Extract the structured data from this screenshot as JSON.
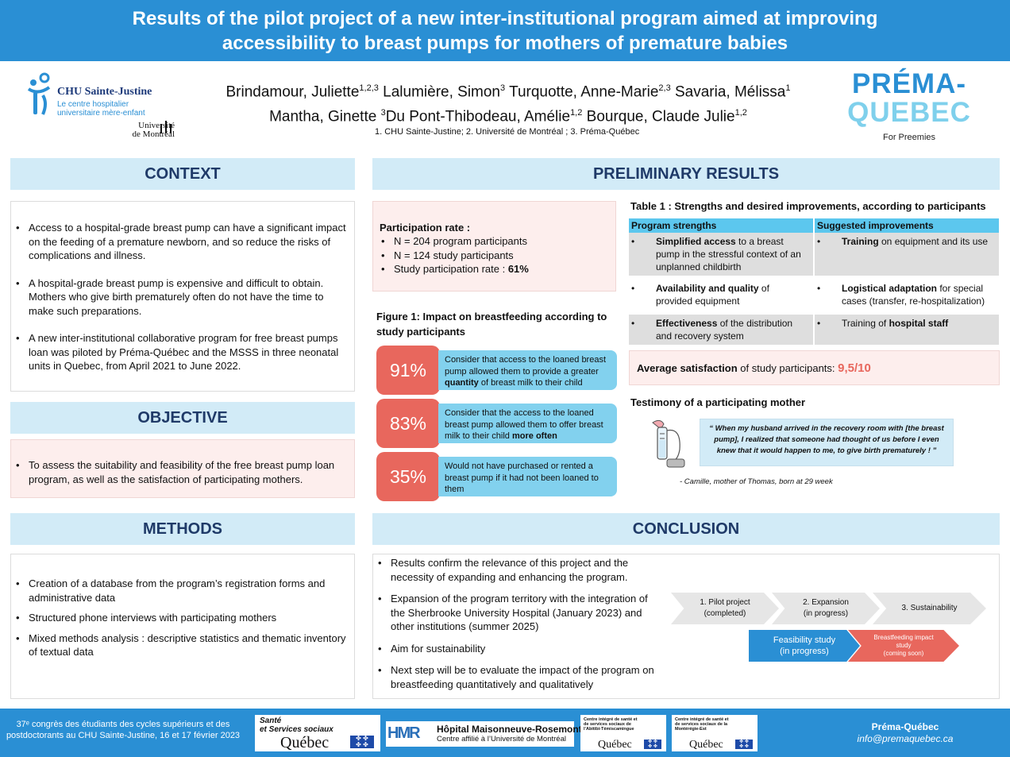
{
  "title_line1": "Results of the pilot project of a new inter-institutional program aimed at improving",
  "title_line2": "accessibility to breast pumps for mothers of premature babies",
  "logos": {
    "chu_name": "CHU Sainte-Justine",
    "chu_sub1": "Le centre hospitalier",
    "chu_sub2": "universitaire mère-enfant",
    "udem1": "Université",
    "udem2": "de Montréal",
    "prema1": "PRÉMA-",
    "prema2": "QUEBEC",
    "prema_tag": "For Preemies"
  },
  "authors": [
    {
      "name": "Brindamour, Juliette",
      "sup": "1,2,3"
    },
    {
      "name": "Lalumière, Simon",
      "sup": "3"
    },
    {
      "name": "Turquotte, Anne-Marie",
      "sup": "2,3"
    },
    {
      "name": "Savaria, Mélissa",
      "sup": "1"
    },
    {
      "name": "Mantha, Ginette ",
      "sup": "3"
    },
    {
      "name": "Du Pont-Thibodeau, Amélie",
      "sup": "1,2"
    },
    {
      "name": "Bourque, Claude Julie",
      "sup": "1,2"
    }
  ],
  "affiliations": "1. CHU Sainte-Justine; 2. Université de Montréal ; 3. Préma-Québec",
  "context": {
    "heading": "CONTEXT",
    "items": [
      "Access to a hospital-grade breast pump can have a significant impact on the feeding of a premature newborn, and so reduce the risks of complications and illness.",
      "A hospital-grade breast pump is expensive and difficult to obtain. Mothers who give birth prematurely often do not have the time to make such preparations.",
      "A new inter-institutional collaborative program for free breast pumps loan was piloted by Préma-Québec and the MSSS in three neonatal units in Quebec, from April 2021 to June 2022."
    ]
  },
  "objective": {
    "heading": "OBJECTIVE",
    "items": [
      "To assess the suitability and feasibility of the free breast pump loan program, as well as the satisfaction of participating mothers."
    ]
  },
  "methods": {
    "heading": "METHODS",
    "items": [
      "Creation of a database from the program’s registration forms and administrative data",
      "Structured phone interviews with participating mothers",
      "Mixed methods analysis : descriptive statistics and thematic inventory of textual data"
    ]
  },
  "results": {
    "heading": "PRELIMINARY RESULTS",
    "participation_title": "Participation rate :",
    "participation": [
      "N = 204 program participants",
      "N = 124 study participants"
    ],
    "participation_rate_label": "Study participation rate : ",
    "participation_rate_value": "61%",
    "figure_title": "Figure 1: Impact on breastfeeding according to study participants",
    "stats": [
      {
        "value": "91%",
        "pre": "Consider that access to the loaned breast pump allowed them to provide a greater ",
        "bold": "quantity",
        "post": " of breast milk to their child"
      },
      {
        "value": "83%",
        "pre": "Consider that the access to the loaned breast pump allowed them to offer breast milk to their child ",
        "bold": "more often",
        "post": ""
      },
      {
        "value": "35%",
        "pre": "Would not have purchased or rented a breast pump if it had not been loaned to them",
        "bold": "",
        "post": ""
      }
    ],
    "table_title": "Table 1 : Strengths and desired improvements, according to participants",
    "table_headers": [
      "Program strengths",
      "Suggested improvements"
    ],
    "table_rows": [
      [
        {
          "b": "Simplified access",
          "t": " to a breast pump in the stressful context of an unplanned childbirth"
        },
        {
          "b": "Training",
          "t": " on equipment and its use"
        }
      ],
      [
        {
          "b": "Availability and quality",
          "t": " of provided equipment"
        },
        {
          "b": "Logistical adaptation",
          "t": " for special cases (transfer, re-hospitalization)"
        }
      ],
      [
        {
          "b": "Effectiveness",
          "t": " of the distribution and recovery system"
        },
        {
          "pre": "Training of ",
          "b": "hospital staff",
          "t": ""
        }
      ]
    ],
    "satisfaction_label": "Average satisfaction",
    "satisfaction_rest": " of study participants: ",
    "satisfaction_value": "9,5/10",
    "testimony_title": "Testimony of a participating mother",
    "quote": "“ When my husband arrived in the recovery room with [the breast pump], I realized that someone had thought of us before I even knew that it would happen to me, to give birth prematurely ! ”",
    "quote_author": "- Camille, mother of Thomas, born at 29 week"
  },
  "conclusion": {
    "heading": "CONCLUSION",
    "items": [
      "Results confirm the relevance of this project and the necessity of expanding and enhancing the program.",
      "Expansion of the program territory with the integration of the Sherbrooke University Hospital (January 2023) and other institutions (summer 2025)",
      "Aim for sustainability",
      "Next step will be to evaluate the impact of the program on breastfeeding quantitatively and qualitatively"
    ],
    "steps": [
      {
        "l1": "1. Pilot project",
        "l2": "(completed)"
      },
      {
        "l1": "2. Expansion",
        "l2": "(in progress)"
      },
      {
        "l1": "3. Sustainability",
        "l2": ""
      }
    ],
    "steps2": [
      {
        "l1": "Feasibility study",
        "l2": "(in progress)"
      },
      {
        "l1": "Breastfeeding impact study",
        "l2": "(coming soon)"
      }
    ]
  },
  "footer": {
    "congress": "37ᵉ congrès des étudiants des cycles supérieurs et des postdoctorants au CHU Sainte-Justine, 16 et 17 février 2023",
    "sante1": "Santé",
    "sante2": "et Services sociaux",
    "quebec": "Québec",
    "hmr1": "Hôpital Maisonneuve-Rosemont",
    "hmr2": "Centre affilié à l’Université de Montréal",
    "cisss1": "Centre intégré de santé et de services sociaux de l’Abitibi-Témiscamingue",
    "cisss2": "Centre intégré de santé et de services sociaux de la Montérégie-Est",
    "org": "Préma-Québec",
    "email": "info@premaquebec.ca"
  },
  "colors": {
    "blue": "#2a8fd4",
    "light_blue": "#d2ebf7",
    "header_text": "#1f3a68",
    "red": "#e8675d",
    "cyan": "#82d1ee"
  }
}
